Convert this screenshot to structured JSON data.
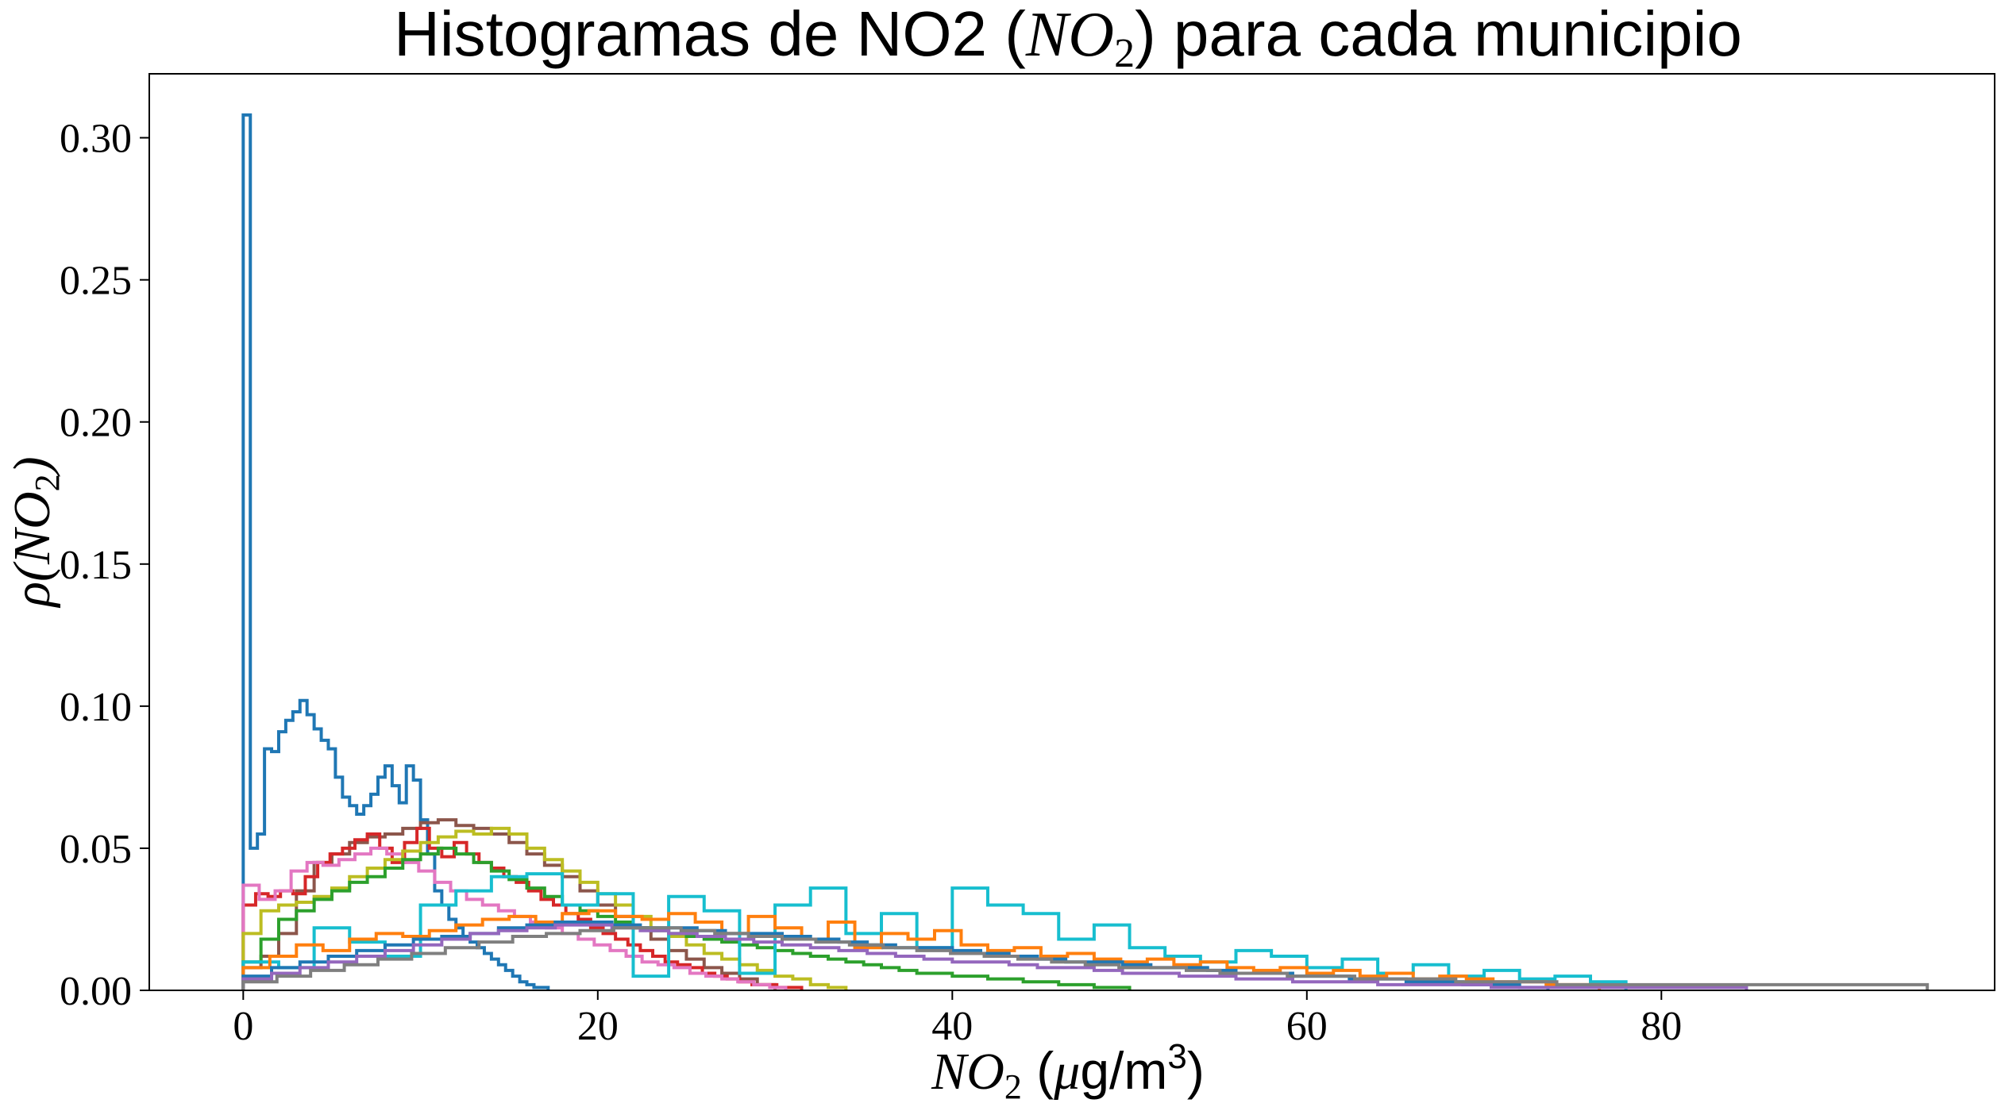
{
  "chart_data": {
    "type": "step_histogram",
    "title": {
      "prefix": "Histogramas de NO2 (",
      "math": "NO",
      "math_sub": "2",
      "suffix": ") para cada municipio"
    },
    "xlabel": {
      "math": "NO",
      "math_sub": "2",
      "units_open": " (",
      "mu": "μ",
      "units": "g/m",
      "units_sup": "3",
      "units_close": ")"
    },
    "ylabel": {
      "rho": "ρ",
      "open": "(",
      "math": "NO",
      "math_sub": "2",
      "close": ")"
    },
    "xlim": [
      -5.3,
      98.8
    ],
    "ylim": [
      0,
      0.3225
    ],
    "xticks": [
      0,
      20,
      40,
      60,
      80
    ],
    "xtick_labels": [
      "0",
      "20",
      "40",
      "60",
      "80"
    ],
    "yticks": [
      0,
      0.05,
      0.1,
      0.15,
      0.2,
      0.25,
      0.3
    ],
    "ytick_labels": [
      "0.00",
      "0.05",
      "0.10",
      "0.15",
      "0.20",
      "0.25",
      "0.30"
    ],
    "grid": false,
    "legend": false,
    "series": [
      {
        "color": "#1f77b4",
        "bin_width": 0.4,
        "start": 0,
        "values": [
          0.308,
          0.05,
          0.055,
          0.085,
          0.084,
          0.091,
          0.095,
          0.098,
          0.102,
          0.097,
          0.092,
          0.088,
          0.085,
          0.075,
          0.068,
          0.065,
          0.062,
          0.065,
          0.069,
          0.075,
          0.079,
          0.072,
          0.066,
          0.079,
          0.074,
          0.06,
          0.048,
          0.035,
          0.03,
          0.025,
          0.022,
          0.019,
          0.017,
          0.015,
          0.013,
          0.011,
          0.009,
          0.007,
          0.005,
          0.003,
          0.002,
          0.001,
          0.001
        ]
      },
      {
        "color": "#8c564b",
        "bin_width": 1.0,
        "start": 0,
        "values": [
          0.008,
          0.012,
          0.02,
          0.035,
          0.045,
          0.048,
          0.052,
          0.054,
          0.055,
          0.057,
          0.059,
          0.06,
          0.058,
          0.057,
          0.055,
          0.052,
          0.048,
          0.044,
          0.04,
          0.035,
          0.03,
          0.026,
          0.022,
          0.018,
          0.014,
          0.011,
          0.008,
          0.006,
          0.004,
          0.002
        ]
      },
      {
        "color": "#d62728",
        "bin_width": 0.7,
        "start": 0,
        "values": [
          0.03,
          0.034,
          0.033,
          0.035,
          0.034,
          0.04,
          0.045,
          0.048,
          0.05,
          0.053,
          0.055,
          0.05,
          0.045,
          0.052,
          0.057,
          0.05,
          0.047,
          0.052,
          0.048,
          0.045,
          0.043,
          0.04,
          0.038,
          0.035,
          0.032,
          0.03,
          0.027,
          0.025,
          0.022,
          0.02,
          0.018,
          0.016,
          0.014,
          0.012,
          0.01,
          0.009,
          0.008,
          0.006,
          0.005,
          0.004,
          0.003,
          0.002,
          0.002,
          0.001,
          0.001
        ]
      },
      {
        "color": "#e377c2",
        "bin_width": 0.9,
        "start": 0,
        "values": [
          0.037,
          0.032,
          0.035,
          0.042,
          0.045,
          0.044,
          0.046,
          0.048,
          0.05,
          0.048,
          0.045,
          0.042,
          0.038,
          0.035,
          0.032,
          0.03,
          0.028,
          0.026,
          0.024,
          0.022,
          0.02,
          0.018,
          0.016,
          0.014,
          0.012,
          0.01,
          0.009,
          0.008,
          0.006,
          0.005,
          0.004,
          0.003,
          0.002,
          0.001
        ]
      },
      {
        "color": "#bcbd22",
        "bin_width": 1.0,
        "start": 0,
        "values": [
          0.02,
          0.028,
          0.03,
          0.031,
          0.033,
          0.036,
          0.04,
          0.043,
          0.046,
          0.049,
          0.052,
          0.054,
          0.056,
          0.055,
          0.057,
          0.055,
          0.05,
          0.046,
          0.042,
          0.038,
          0.034,
          0.03,
          0.026,
          0.022,
          0.019,
          0.016,
          0.013,
          0.011,
          0.009,
          0.007,
          0.005,
          0.004,
          0.002,
          0.001
        ]
      },
      {
        "color": "#2ca02c",
        "bin_width": 1.0,
        "start": 0,
        "values": [
          0.01,
          0.018,
          0.025,
          0.028,
          0.032,
          0.035,
          0.038,
          0.04,
          0.043,
          0.046,
          0.048,
          0.05,
          0.048,
          0.045,
          0.042,
          0.039,
          0.036,
          0.033,
          0.03,
          0.028,
          0.026,
          0.024,
          0.022,
          0.021,
          0.02,
          0.019,
          0.018,
          0.017,
          0.016,
          0.015,
          0.014,
          0.013,
          0.012,
          0.011,
          0.01,
          0.009,
          0.008,
          0.007,
          0.006,
          0.006,
          0.005,
          0.005,
          0.004,
          0.004,
          0.003,
          0.003,
          0.002,
          0.002,
          0.001,
          0.001
        ]
      },
      {
        "color": "#17becf",
        "bin_width": 2.0,
        "start": 0,
        "values": [
          0.01,
          0.008,
          0.022,
          0.017,
          0.012,
          0.03,
          0.035,
          0.04,
          0.041,
          0.03,
          0.034,
          0.005,
          0.033,
          0.028,
          0.006,
          0.03,
          0.036,
          0.02,
          0.027,
          0.015,
          0.036,
          0.03,
          0.027,
          0.018,
          0.023,
          0.015,
          0.012,
          0.01,
          0.014,
          0.012,
          0.008,
          0.011,
          0.006,
          0.009,
          0.005,
          0.007,
          0.004,
          0.005,
          0.003
        ]
      },
      {
        "color": "#ff7f0e",
        "bin_width": 1.5,
        "start": 0,
        "values": [
          0.008,
          0.012,
          0.016,
          0.014,
          0.018,
          0.02,
          0.019,
          0.021,
          0.023,
          0.025,
          0.026,
          0.024,
          0.027,
          0.028,
          0.026,
          0.025,
          0.027,
          0.024,
          0.02,
          0.026,
          0.022,
          0.018,
          0.024,
          0.015,
          0.02,
          0.018,
          0.021,
          0.016,
          0.014,
          0.015,
          0.012,
          0.013,
          0.011,
          0.01,
          0.011,
          0.009,
          0.01,
          0.008,
          0.007,
          0.008,
          0.006,
          0.007,
          0.005,
          0.006,
          0.004,
          0.005,
          0.004,
          0.003,
          0.003,
          0.002,
          0.002
        ]
      },
      {
        "color": "#1f77b4",
        "bin_width": 1.6,
        "start": 0,
        "values": [
          0.005,
          0.008,
          0.01,
          0.012,
          0.014,
          0.016,
          0.018,
          0.019,
          0.02,
          0.022,
          0.023,
          0.024,
          0.024,
          0.023,
          0.022,
          0.022,
          0.021,
          0.02,
          0.02,
          0.019,
          0.018,
          0.017,
          0.016,
          0.015,
          0.015,
          0.014,
          0.013,
          0.012,
          0.011,
          0.01,
          0.01,
          0.009,
          0.008,
          0.008,
          0.007,
          0.006,
          0.006,
          0.005,
          0.005,
          0.004,
          0.004,
          0.003,
          0.003,
          0.002,
          0.002,
          0.001
        ]
      },
      {
        "color": "#9467bd",
        "bin_width": 1.6,
        "start": 0,
        "values": [
          0.004,
          0.006,
          0.008,
          0.01,
          0.012,
          0.014,
          0.016,
          0.018,
          0.02,
          0.021,
          0.022,
          0.023,
          0.023,
          0.022,
          0.021,
          0.02,
          0.019,
          0.018,
          0.017,
          0.016,
          0.015,
          0.014,
          0.013,
          0.012,
          0.011,
          0.01,
          0.01,
          0.009,
          0.008,
          0.008,
          0.007,
          0.006,
          0.006,
          0.005,
          0.005,
          0.004,
          0.004,
          0.003,
          0.003,
          0.003,
          0.002,
          0.002,
          0.002,
          0.002,
          0.001,
          0.001,
          0.001,
          0.001,
          0.001,
          0.001,
          0.001,
          0.001,
          0.001
        ]
      },
      {
        "color": "#7f7f7f",
        "bin_width": 1.9,
        "start": 0,
        "values": [
          0.003,
          0.005,
          0.007,
          0.009,
          0.011,
          0.013,
          0.015,
          0.017,
          0.019,
          0.02,
          0.021,
          0.022,
          0.022,
          0.021,
          0.02,
          0.019,
          0.018,
          0.017,
          0.016,
          0.015,
          0.014,
          0.013,
          0.012,
          0.011,
          0.01,
          0.009,
          0.008,
          0.008,
          0.007,
          0.006,
          0.006,
          0.005,
          0.005,
          0.004,
          0.004,
          0.004,
          0.003,
          0.003,
          0.003,
          0.002,
          0.002,
          0.002,
          0.002,
          0.002,
          0.002,
          0.002,
          0.002,
          0.002,
          0.002,
          0.002
        ]
      }
    ]
  }
}
